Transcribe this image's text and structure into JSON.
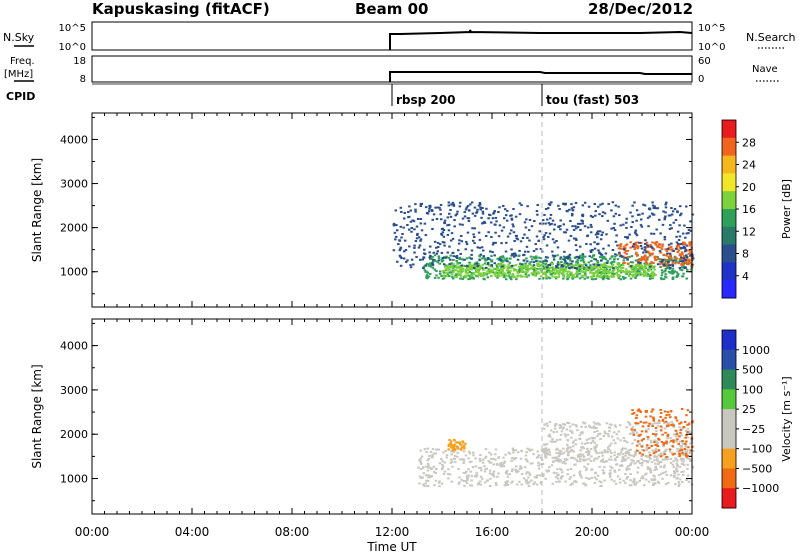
{
  "header": {
    "station": "Kapuskasing (fitACF)",
    "beam": "Beam 00",
    "date": "28/Dec/2012"
  },
  "top_panels": {
    "nsky_label": "N.Sky",
    "nsky_ticks": [
      "10^5",
      "10^0"
    ],
    "nsearch_label": "N.Search",
    "nsearch_ticks": [
      "10^5",
      "10^0"
    ],
    "freq_label_1": "Freq.",
    "freq_label_2": "[MHz]",
    "freq_ticks": [
      "18",
      "8"
    ],
    "nave_label": "Nave",
    "nave_ticks": [
      "60",
      "0"
    ],
    "cpid_label": "CPID",
    "cpid_segments": [
      {
        "label": "rbsp 200",
        "start_hour": 12.0
      },
      {
        "label": "tou (fast) 503",
        "start_hour": 18.0
      }
    ]
  },
  "chart_data": [
    {
      "type": "heatmap",
      "title": "",
      "xlabel": "",
      "ylabel": "Slant Range [km]",
      "xlim": [
        0,
        24
      ],
      "ylim": [
        200,
        4600
      ],
      "yticks": [
        "4000",
        "3000",
        "2000",
        "1000"
      ],
      "ytick_values": [
        4000,
        3000,
        2000,
        1000
      ],
      "colorbar_label": "Power [dB]",
      "colorbar_ticks": [
        "28",
        "24",
        "20",
        "16",
        "12",
        "8",
        "4"
      ],
      "colorbar_colors": [
        "#e81c1c",
        "#f0641e",
        "#f5b61e",
        "#f2e62a",
        "#7dd23c",
        "#2fa05a",
        "#2a7a6a",
        "#2a4f8c",
        "#1e32c8",
        "#2828ff"
      ],
      "scatter_bands": [
        {
          "x0": 13.2,
          "x1": 24,
          "ylo": 850,
          "yhi": 1400,
          "color": "#2fa05a"
        },
        {
          "x0": 14.0,
          "x1": 22.5,
          "ylo": 900,
          "yhi": 1200,
          "color": "#7dd23c"
        },
        {
          "x0": 21.0,
          "x1": 24,
          "ylo": 1150,
          "yhi": 1700,
          "color": "#f0641e"
        },
        {
          "x0": 12.0,
          "x1": 24,
          "ylo": 1100,
          "yhi": 2600,
          "color": "#2a4f8c"
        }
      ]
    },
    {
      "type": "heatmap",
      "title": "",
      "xlabel": "Time UT",
      "ylabel": "Slant Range [km]",
      "xlim": [
        0,
        24
      ],
      "ylim": [
        200,
        4600
      ],
      "xticks": [
        "00:00",
        "04:00",
        "08:00",
        "12:00",
        "16:00",
        "20:00",
        "00:00"
      ],
      "xtick_values": [
        0,
        4,
        8,
        12,
        16,
        20,
        24
      ],
      "yticks": [
        "4000",
        "3000",
        "2000",
        "1000"
      ],
      "ytick_values": [
        4000,
        3000,
        2000,
        1000
      ],
      "colorbar_label": "Velocity [m s⁻¹]",
      "colorbar_ticks": [
        "1000",
        "500",
        "100",
        "25",
        "−25",
        "−100",
        "−500",
        "−1000"
      ],
      "colorbar_colors": [
        "#1e2ec8",
        "#2a4fa8",
        "#2f8a5a",
        "#55c83c",
        "#c8c8c0",
        "#c8c8c0",
        "#f5a01e",
        "#f06a14",
        "#e81c1c"
      ],
      "scatter_bands": [
        {
          "x0": 13.0,
          "x1": 24,
          "ylo": 850,
          "yhi": 1700,
          "color": "#c8c8c0"
        },
        {
          "x0": 18.0,
          "x1": 24,
          "ylo": 1400,
          "yhi": 2300,
          "color": "#c8c8c0"
        },
        {
          "x0": 21.5,
          "x1": 24,
          "ylo": 1500,
          "yhi": 2600,
          "color": "#f06a14"
        },
        {
          "x0": 14.2,
          "x1": 14.9,
          "ylo": 1650,
          "yhi": 1900,
          "color": "#f5a01e"
        }
      ]
    }
  ]
}
